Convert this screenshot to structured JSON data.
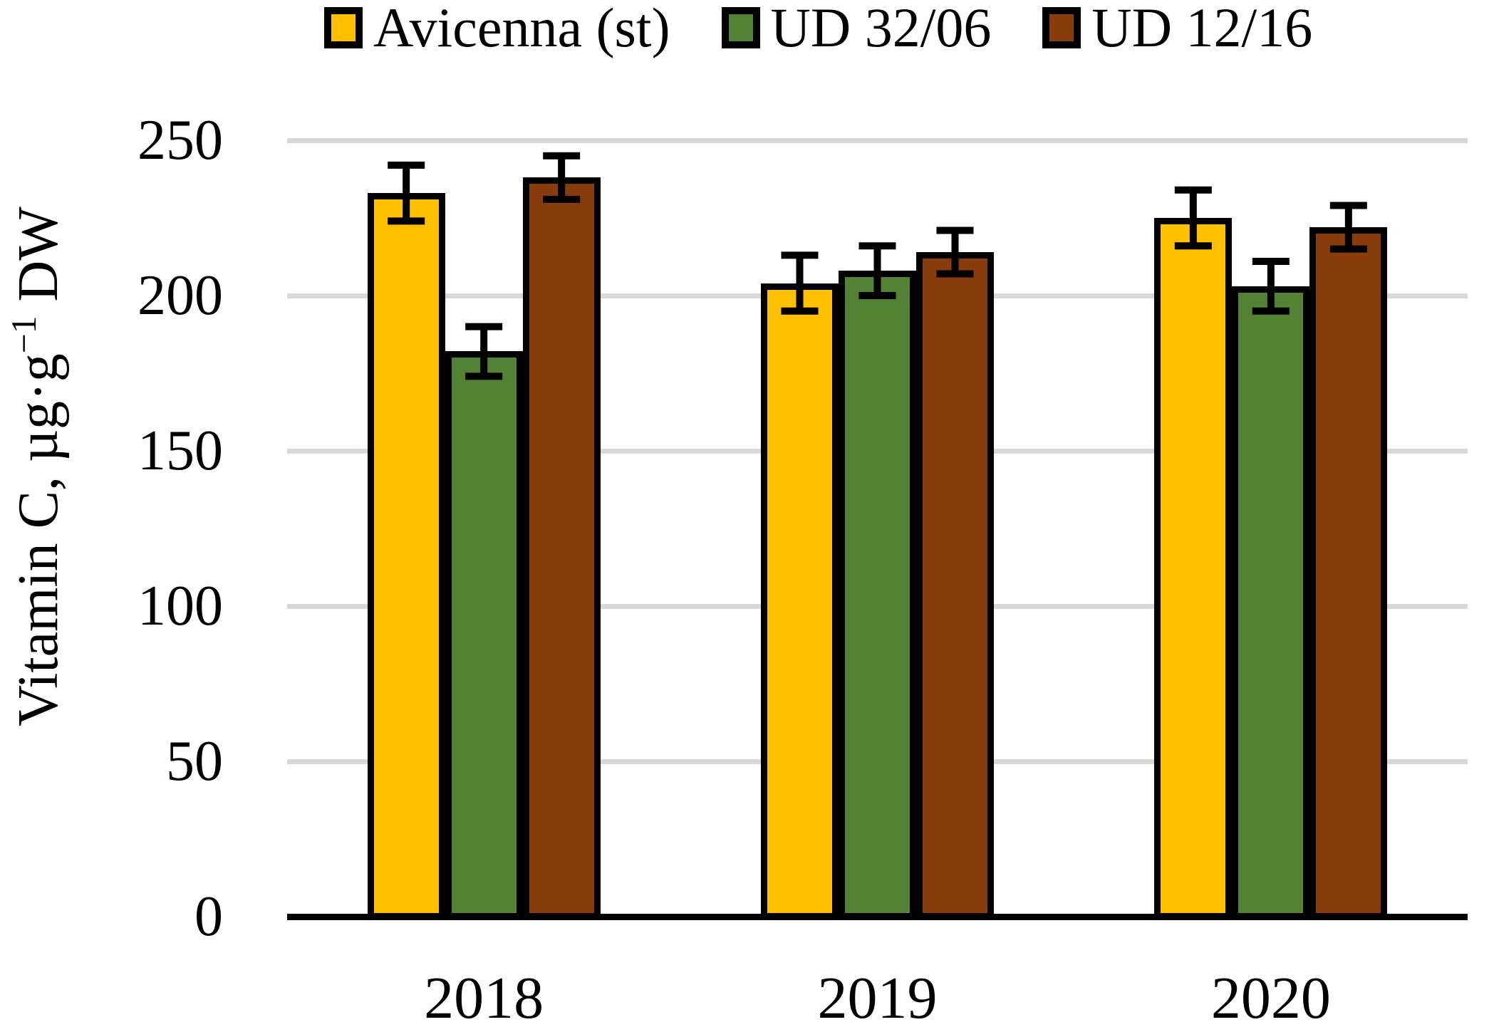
{
  "chart_data": {
    "type": "bar",
    "title": "",
    "categories": [
      "2018",
      "2019",
      "2020"
    ],
    "series": [
      {
        "name": "Avicenna (st)",
        "color": "#FFC000",
        "values": [
          233,
          204,
          225
        ],
        "errors": [
          9,
          9,
          9
        ]
      },
      {
        "name": "UD 32/06",
        "color": "#538234",
        "values": [
          182,
          208,
          203
        ],
        "errors": [
          8,
          8,
          8
        ]
      },
      {
        "name": "UD 12/16",
        "color": "#8A3D0C",
        "values": [
          238,
          214,
          222
        ],
        "errors": [
          7,
          7,
          7
        ]
      }
    ],
    "ylabel": {
      "prefix": "Vitamin C, µg·g",
      "sup": "−1",
      "suffix": " DW"
    },
    "xlabel": "",
    "ylim": [
      0,
      250
    ],
    "yticks": [
      0,
      50,
      100,
      150,
      200,
      250
    ],
    "grid": true,
    "legend_position": "top",
    "bar_border_color": "#000000",
    "gridline_color": "#D8D8D8",
    "axis_color": "#000000",
    "error_bar_color": "#000000"
  }
}
